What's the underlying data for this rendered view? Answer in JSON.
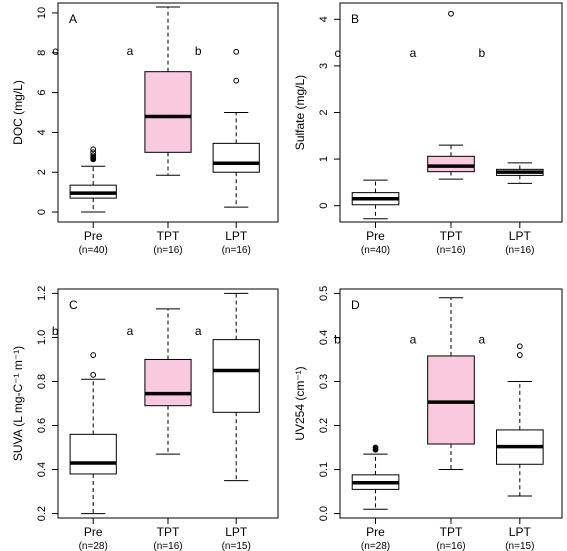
{
  "colors": {
    "highlight": "#f9c9dd",
    "plain": "#ffffff",
    "ink": "#000000"
  },
  "chart_data": [
    {
      "type": "boxplot",
      "panel_letter": "A",
      "ylabel": "DOC (mg/L)",
      "ylim": [
        -0.5,
        10.5
      ],
      "yticks": [
        0,
        2,
        4,
        6,
        8,
        10
      ],
      "ytick_labels": [
        "0",
        "2",
        "4",
        "6",
        "8",
        "10"
      ],
      "categories": [
        "Pre",
        "TPT",
        "LPT"
      ],
      "counts": [
        "(n=40)",
        "(n=16)",
        "(n=16)"
      ],
      "letters": [
        "c",
        "a",
        "b"
      ],
      "letter_y": 8.1,
      "highlight": [
        false,
        true,
        false
      ],
      "boxes": [
        {
          "whislo": 0,
          "q1": 0.7,
          "med": 0.95,
          "q3": 1.35,
          "whishi": 2.3,
          "fliers": [
            2.65,
            2.75,
            2.85,
            3.0,
            3.15
          ],
          "filled_fliers": [
            2.65,
            2.75
          ]
        },
        {
          "whislo": 1.85,
          "q1": 3.0,
          "med": 4.8,
          "q3": 7.05,
          "whishi": 10.3,
          "fliers": [],
          "filled_fliers": []
        },
        {
          "whislo": 0.25,
          "q1": 2.0,
          "med": 2.45,
          "q3": 3.45,
          "whishi": 5.0,
          "fliers": [
            6.6,
            8.05
          ],
          "filled_fliers": []
        }
      ]
    },
    {
      "type": "boxplot",
      "panel_letter": "B",
      "ylabel": "Sulfate (mg/L)",
      "ylim": [
        -0.35,
        4.35
      ],
      "yticks": [
        0,
        1,
        2,
        3,
        4
      ],
      "ytick_labels": [
        "0",
        "1",
        "2",
        "3",
        "4"
      ],
      "categories": [
        "Pre",
        "TPT",
        "LPT"
      ],
      "counts": [
        "(n=40)",
        "(n=16)",
        "(n=16)"
      ],
      "letters": [
        "c",
        "a",
        "b"
      ],
      "letter_y": 3.28,
      "highlight": [
        false,
        true,
        false
      ],
      "boxes": [
        {
          "whislo": -0.28,
          "q1": 0.02,
          "med": 0.15,
          "q3": 0.28,
          "whishi": 0.55,
          "fliers": [],
          "filled_fliers": []
        },
        {
          "whislo": 0.57,
          "q1": 0.73,
          "med": 0.85,
          "q3": 1.06,
          "whishi": 1.3,
          "fliers": [
            4.12
          ],
          "filled_fliers": []
        },
        {
          "whislo": 0.48,
          "q1": 0.65,
          "med": 0.72,
          "q3": 0.78,
          "whishi": 0.92,
          "fliers": [],
          "filled_fliers": []
        }
      ]
    },
    {
      "type": "boxplot",
      "panel_letter": "C",
      "ylabel": "SUVA (L mg-C⁻¹ m⁻¹)",
      "ylim": [
        0.18,
        1.22
      ],
      "yticks": [
        0.2,
        0.4,
        0.6,
        0.8,
        1.0,
        1.2
      ],
      "ytick_labels": [
        "0.2",
        "0.4",
        "0.6",
        "0.8",
        "1.0",
        "1.2"
      ],
      "categories": [
        "Pre",
        "TPT",
        "LPT"
      ],
      "counts": [
        "(n=28)",
        "(n=16)",
        "(n=15)"
      ],
      "letters": [
        "b",
        "a",
        "a"
      ],
      "letter_y": 1.03,
      "highlight": [
        false,
        true,
        false
      ],
      "boxes": [
        {
          "whislo": 0.2,
          "q1": 0.38,
          "med": 0.43,
          "q3": 0.56,
          "whishi": 0.81,
          "fliers": [
            0.83,
            0.92
          ],
          "filled_fliers": []
        },
        {
          "whislo": 0.47,
          "q1": 0.69,
          "med": 0.745,
          "q3": 0.9,
          "whishi": 1.13,
          "fliers": [],
          "filled_fliers": []
        },
        {
          "whislo": 0.35,
          "q1": 0.66,
          "med": 0.85,
          "q3": 0.99,
          "whishi": 1.2,
          "fliers": [],
          "filled_fliers": []
        }
      ]
    },
    {
      "type": "boxplot",
      "panel_letter": "D",
      "ylabel": "UV254 (cm⁻¹)",
      "ylim": [
        -0.01,
        0.51
      ],
      "yticks": [
        0.0,
        0.1,
        0.2,
        0.3,
        0.4,
        0.5
      ],
      "ytick_labels": [
        "0.0",
        "0.1",
        "0.2",
        "0.3",
        "0.4",
        "0.5"
      ],
      "categories": [
        "Pre",
        "TPT",
        "LPT"
      ],
      "counts": [
        "(n=28)",
        "(n=16)",
        "(n=15)"
      ],
      "letters": [
        "b",
        "a",
        "a"
      ],
      "letter_y": 0.395,
      "highlight": [
        false,
        true,
        false
      ],
      "boxes": [
        {
          "whislo": 0.01,
          "q1": 0.055,
          "med": 0.07,
          "q3": 0.088,
          "whishi": 0.135,
          "fliers": [
            0.145,
            0.15
          ],
          "filled_fliers": [
            0.145,
            0.15
          ]
        },
        {
          "whislo": 0.1,
          "q1": 0.158,
          "med": 0.253,
          "q3": 0.358,
          "whishi": 0.49,
          "fliers": [],
          "filled_fliers": []
        },
        {
          "whislo": 0.04,
          "q1": 0.112,
          "med": 0.152,
          "q3": 0.19,
          "whishi": 0.3,
          "fliers": [
            0.36,
            0.38
          ],
          "filled_fliers": []
        }
      ]
    }
  ]
}
